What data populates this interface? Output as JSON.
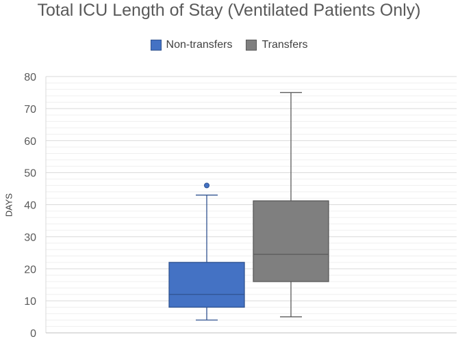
{
  "chart_data": {
    "type": "box",
    "title": "Total ICU Length of Stay (Ventilated Patients Only)",
    "xlabel": "",
    "ylabel": "DAYS",
    "ylim": [
      0,
      80
    ],
    "yticks": [
      0,
      10,
      20,
      30,
      40,
      50,
      60,
      70,
      80
    ],
    "ytick_labels": [
      "0",
      "10",
      "20",
      "30",
      "40",
      "50",
      "60",
      "70",
      "80"
    ],
    "grid": true,
    "legend_position": "top",
    "series": [
      {
        "name": "Non-transfers",
        "color": "#4472C4",
        "edge_color": "#2F528F",
        "min": 4,
        "q1": 8,
        "median": 12,
        "q3": 22,
        "max": 43,
        "outliers": [
          46
        ]
      },
      {
        "name": "Transfers",
        "color": "#7F7F7F",
        "edge_color": "#595959",
        "min": 5,
        "q1": 16,
        "median": 24.5,
        "q3": 41.2,
        "max": 75,
        "outliers": []
      }
    ]
  }
}
